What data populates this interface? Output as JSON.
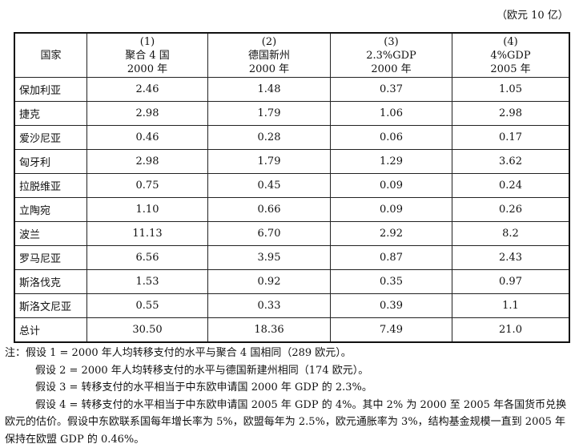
{
  "unit_label": "（欧元 10 亿）",
  "table": {
    "headers": [
      [
        "国家"
      ],
      [
        "(1)",
        "聚合 4 国",
        "2000 年"
      ],
      [
        "(2)",
        "德国新州",
        "2000 年"
      ],
      [
        "(3)",
        "2.3%GDP",
        "2000 年"
      ],
      [
        "(4)",
        "4%GDP",
        "2005 年"
      ]
    ],
    "rows": [
      [
        "保加利亚",
        "2.46",
        "1.48",
        "0.37",
        "1.05"
      ],
      [
        "捷克",
        "2.98",
        "1.79",
        "1.06",
        "2.98"
      ],
      [
        "爱沙尼亚",
        "0.46",
        "0.28",
        "0.06",
        "0.17"
      ],
      [
        "匈牙利",
        "2.98",
        "1.79",
        "1.29",
        "3.62"
      ],
      [
        "拉脱维亚",
        "0.75",
        "0.45",
        "0.09",
        "0.24"
      ],
      [
        "立陶宛",
        "1.10",
        "0.66",
        "0.09",
        "0.26"
      ],
      [
        "波兰",
        "11.13",
        "6.70",
        "2.92",
        "8.2"
      ],
      [
        "罗马尼亚",
        "6.56",
        "3.95",
        "0.87",
        "2.43"
      ],
      [
        "斯洛伐克",
        "1.53",
        "0.92",
        "0.35",
        "0.97"
      ],
      [
        "斯洛文尼亚",
        "0.55",
        "0.33",
        "0.39",
        "1.1"
      ],
      [
        "总计",
        "30.50",
        "18.36",
        "7.49",
        "21.0"
      ]
    ]
  },
  "notes": [
    "注：假设 1 = 2000 年人均转移支付的水平与聚合 4 国相同（289 欧元）。",
    "假设 2 = 2000 年人均转移支付的水平与德国新建州相同（174 欧元）。",
    "假设 3 = 转移支付的水平相当于中东欧申请国 2000 年 GDP 的 2.3%。",
    "假设 4 = 转移支付的水平相当于中东欧申请国 2005 年 GDP 的 4%。其中 2% 为 2000 至 2005 年各国货币兑换欧元的估价。假设中东欧联系国每年增长率为 5%，欧盟每年为 2.5%，欧元通胀率为 3%，结构基金规模一直到 2005 年保持在欧盟 GDP 的 0.46%。"
  ]
}
